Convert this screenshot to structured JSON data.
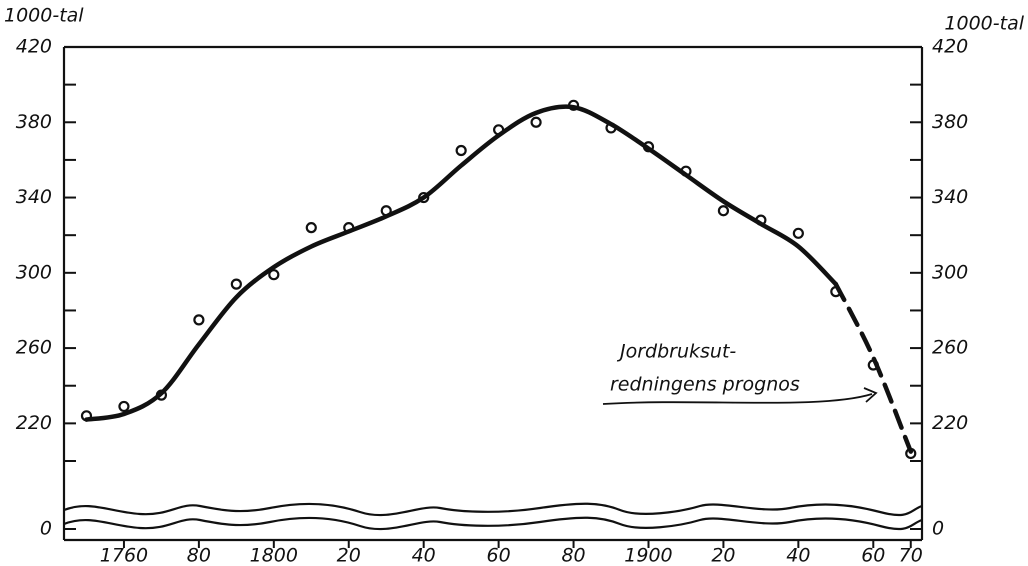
{
  "chart_data": {
    "type": "line",
    "ylabel": "1000-tal",
    "y2label": "1000-tal",
    "annotation": [
      "Jordbruksut-",
      "redningens prognos"
    ],
    "x": [
      1750,
      1760,
      1770,
      1780,
      1790,
      1800,
      1810,
      1820,
      1830,
      1840,
      1850,
      1860,
      1870,
      1880,
      1890,
      1900,
      1910,
      1920,
      1930,
      1940,
      1950,
      1960,
      1970
    ],
    "series": [
      {
        "style": "points",
        "color": "#111111",
        "values": [
          224,
          229,
          235,
          275,
          294,
          299,
          324,
          324,
          333,
          340,
          365,
          376,
          380,
          389,
          377,
          367,
          354,
          333,
          328,
          321,
          290,
          251,
          204
        ]
      },
      {
        "style": "solid",
        "color": "#111111",
        "values": [
          222,
          225,
          236,
          262,
          287,
          303,
          314,
          322,
          330,
          340,
          357,
          373,
          385,
          388,
          379,
          366,
          352,
          338,
          326,
          314,
          294,
          null,
          null
        ]
      },
      {
        "style": "dashed",
        "color": "#111111",
        "values": [
          null,
          null,
          null,
          null,
          null,
          null,
          null,
          null,
          null,
          null,
          null,
          null,
          null,
          null,
          null,
          null,
          null,
          null,
          null,
          null,
          294,
          255,
          205
        ]
      }
    ],
    "xlim": [
      1744,
      1973
    ],
    "xticks": [
      {
        "value": 1760,
        "label": "1760"
      },
      {
        "value": 1780,
        "label": "80"
      },
      {
        "value": 1800,
        "label": "1800"
      },
      {
        "value": 1820,
        "label": "20"
      },
      {
        "value": 1840,
        "label": "40"
      },
      {
        "value": 1860,
        "label": "60"
      },
      {
        "value": 1880,
        "label": "80"
      },
      {
        "value": 1900,
        "label": "1900"
      },
      {
        "value": 1920,
        "label": "20"
      },
      {
        "value": 1940,
        "label": "40"
      },
      {
        "value": 1960,
        "label": "60"
      },
      {
        "value": 1970,
        "label": "70"
      }
    ],
    "ylim": [
      0,
      420
    ],
    "ybreak": [
      0,
      200
    ],
    "yticks": [
      0,
      220,
      260,
      300,
      340,
      380,
      420
    ],
    "yminor": [
      200,
      240,
      280,
      320,
      360,
      400
    ],
    "y2lim": [
      0,
      420
    ],
    "y2ticks": [
      0,
      220,
      260,
      300,
      340,
      380,
      420
    ]
  }
}
